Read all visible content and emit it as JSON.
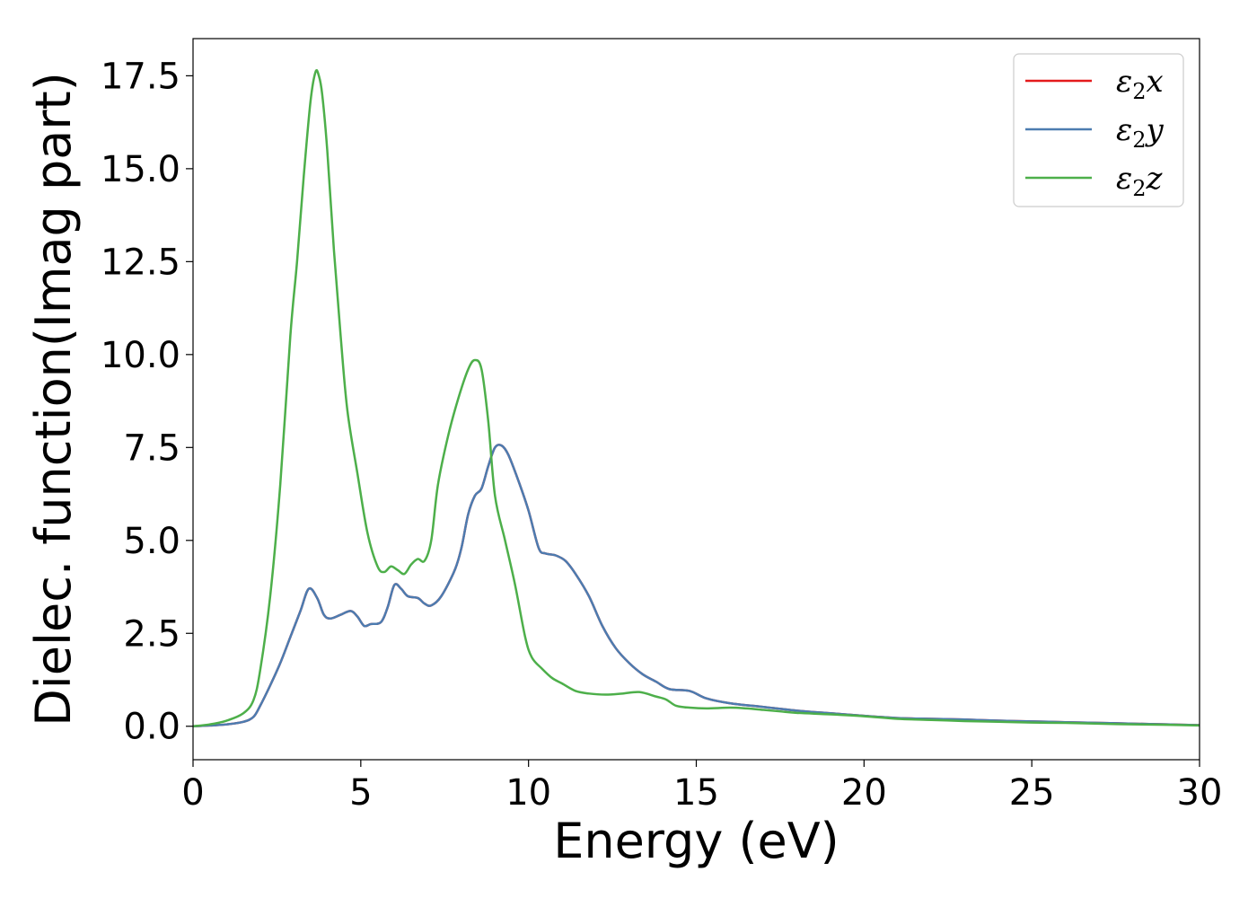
{
  "chart_data": {
    "type": "line",
    "xlabel": "Energy (eV)",
    "ylabel": "Dielec. function(Imag part)",
    "xlim": [
      0,
      30
    ],
    "ylim": [
      -0.9,
      18.5
    ],
    "x_ticks": [
      0,
      5,
      10,
      15,
      20,
      25,
      30
    ],
    "y_ticks": [
      0.0,
      2.5,
      5.0,
      7.5,
      10.0,
      12.5,
      15.0,
      17.5
    ],
    "x_tick_labels": [
      "0",
      "5",
      "10",
      "15",
      "20",
      "25",
      "30"
    ],
    "y_tick_labels": [
      "0.0",
      "2.5",
      "5.0",
      "7.5",
      "10.0",
      "12.5",
      "15.0",
      "17.5"
    ],
    "grid": false,
    "legend_position": "top-right",
    "series": [
      {
        "name": "ε2x",
        "name_base": "ε",
        "name_sub": "2",
        "name_var": "x",
        "color": "#e41a1c",
        "x": [
          0,
          0.5,
          1.0,
          1.5,
          1.8,
          2.0,
          2.3,
          2.6,
          2.9,
          3.2,
          3.45,
          3.7,
          3.9,
          4.1,
          4.4,
          4.7,
          4.9,
          5.1,
          5.3,
          5.6,
          5.8,
          6.0,
          6.2,
          6.4,
          6.7,
          6.9,
          7.1,
          7.4,
          7.8,
          8.0,
          8.2,
          8.4,
          8.6,
          8.8,
          9.0,
          9.2,
          9.4,
          9.7,
          10.0,
          10.3,
          10.5,
          10.8,
          11.1,
          11.4,
          11.8,
          12.2,
          12.6,
          13.0,
          13.4,
          13.8,
          14.2,
          14.8,
          15.3,
          16.0,
          17.0,
          18.0,
          19.0,
          20.0,
          21.0,
          22.0,
          23.0,
          24.0,
          25.0,
          26.0,
          27.0,
          28.0,
          29.0,
          30.0
        ],
        "values": [
          0.0,
          0.02,
          0.05,
          0.12,
          0.25,
          0.55,
          1.1,
          1.7,
          2.4,
          3.1,
          3.7,
          3.45,
          3.0,
          2.9,
          3.0,
          3.1,
          2.95,
          2.7,
          2.75,
          2.8,
          3.2,
          3.8,
          3.7,
          3.5,
          3.45,
          3.3,
          3.25,
          3.5,
          4.2,
          4.8,
          5.7,
          6.2,
          6.4,
          7.0,
          7.5,
          7.55,
          7.3,
          6.6,
          5.8,
          4.8,
          4.65,
          4.6,
          4.45,
          4.1,
          3.5,
          2.7,
          2.1,
          1.7,
          1.4,
          1.2,
          1.0,
          0.95,
          0.75,
          0.62,
          0.52,
          0.42,
          0.35,
          0.28,
          0.22,
          0.2,
          0.18,
          0.15,
          0.13,
          0.11,
          0.09,
          0.07,
          0.05,
          0.03
        ]
      },
      {
        "name": "ε2y",
        "name_base": "ε",
        "name_sub": "2",
        "name_var": "y",
        "color": "#4c7cb0",
        "x": [
          0,
          0.5,
          1.0,
          1.5,
          1.8,
          2.0,
          2.3,
          2.6,
          2.9,
          3.2,
          3.45,
          3.7,
          3.9,
          4.1,
          4.4,
          4.7,
          4.9,
          5.1,
          5.3,
          5.6,
          5.8,
          6.0,
          6.2,
          6.4,
          6.7,
          6.9,
          7.1,
          7.4,
          7.8,
          8.0,
          8.2,
          8.4,
          8.6,
          8.8,
          9.0,
          9.2,
          9.4,
          9.7,
          10.0,
          10.3,
          10.5,
          10.8,
          11.1,
          11.4,
          11.8,
          12.2,
          12.6,
          13.0,
          13.4,
          13.8,
          14.2,
          14.8,
          15.3,
          16.0,
          17.0,
          18.0,
          19.0,
          20.0,
          21.0,
          22.0,
          23.0,
          24.0,
          25.0,
          26.0,
          27.0,
          28.0,
          29.0,
          30.0
        ],
        "values": [
          0.0,
          0.02,
          0.05,
          0.12,
          0.25,
          0.55,
          1.1,
          1.7,
          2.4,
          3.1,
          3.7,
          3.45,
          3.0,
          2.9,
          3.0,
          3.1,
          2.95,
          2.7,
          2.75,
          2.8,
          3.2,
          3.8,
          3.7,
          3.5,
          3.45,
          3.3,
          3.25,
          3.5,
          4.2,
          4.8,
          5.7,
          6.2,
          6.4,
          7.0,
          7.5,
          7.55,
          7.3,
          6.6,
          5.8,
          4.8,
          4.65,
          4.6,
          4.45,
          4.1,
          3.5,
          2.7,
          2.1,
          1.7,
          1.4,
          1.2,
          1.0,
          0.95,
          0.75,
          0.62,
          0.52,
          0.42,
          0.35,
          0.28,
          0.22,
          0.2,
          0.18,
          0.15,
          0.13,
          0.11,
          0.09,
          0.07,
          0.05,
          0.03
        ]
      },
      {
        "name": "ε2z",
        "name_base": "ε",
        "name_sub": "2",
        "name_var": "z",
        "color": "#4daf4a",
        "x": [
          0,
          0.5,
          1.0,
          1.5,
          1.8,
          2.0,
          2.3,
          2.6,
          2.9,
          3.1,
          3.3,
          3.5,
          3.65,
          3.75,
          3.85,
          4.0,
          4.2,
          4.4,
          4.6,
          4.9,
          5.2,
          5.5,
          5.7,
          5.9,
          6.1,
          6.3,
          6.5,
          6.7,
          6.9,
          7.1,
          7.3,
          7.6,
          7.9,
          8.2,
          8.4,
          8.6,
          8.8,
          9.0,
          9.3,
          9.6,
          9.9,
          10.1,
          10.4,
          10.7,
          11.0,
          11.4,
          11.8,
          12.3,
          12.8,
          13.3,
          13.8,
          14.1,
          14.4,
          14.8,
          15.3,
          16.0,
          16.5,
          17.0,
          17.5,
          18.0,
          19.0,
          20.0,
          21.0,
          22.0,
          23.0,
          24.0,
          25.0,
          26.0,
          27.0,
          28.0,
          29.0,
          30.0
        ],
        "values": [
          0.0,
          0.05,
          0.15,
          0.35,
          0.7,
          1.5,
          3.5,
          6.5,
          10.5,
          12.5,
          14.8,
          16.8,
          17.6,
          17.5,
          17.0,
          15.5,
          12.8,
          10.5,
          8.5,
          6.8,
          5.2,
          4.3,
          4.15,
          4.3,
          4.2,
          4.1,
          4.35,
          4.5,
          4.45,
          5.0,
          6.5,
          7.8,
          8.8,
          9.6,
          9.85,
          9.6,
          8.2,
          6.2,
          5.0,
          3.8,
          2.4,
          1.85,
          1.55,
          1.3,
          1.15,
          0.95,
          0.88,
          0.85,
          0.88,
          0.92,
          0.8,
          0.72,
          0.55,
          0.5,
          0.48,
          0.5,
          0.48,
          0.44,
          0.4,
          0.36,
          0.32,
          0.27,
          0.2,
          0.17,
          0.14,
          0.12,
          0.1,
          0.09,
          0.07,
          0.05,
          0.04,
          0.02
        ]
      }
    ]
  }
}
